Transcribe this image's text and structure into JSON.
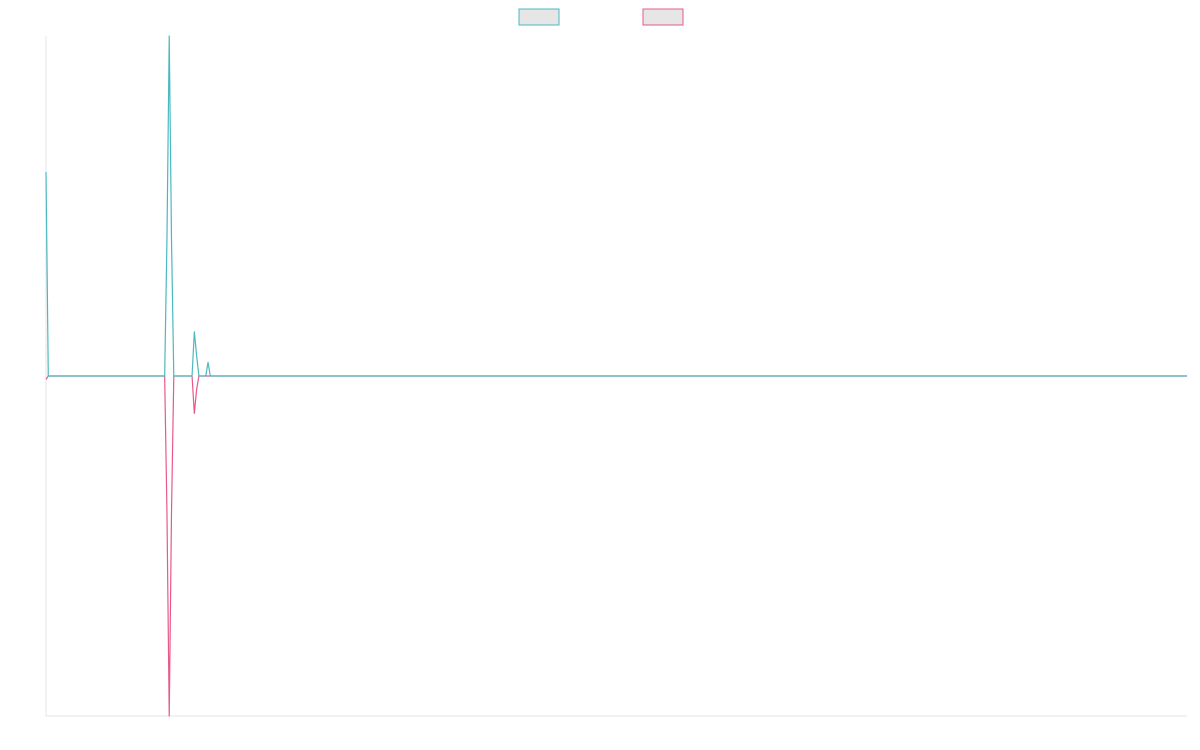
{
  "chart_data": {
    "type": "line",
    "title": "",
    "xlabel": "",
    "ylabel": "",
    "legend": "top-center",
    "grid": false,
    "xlim": [
      0,
      100
    ],
    "ylim": [
      -1,
      1
    ],
    "x": [
      0,
      0.2,
      10.2,
      10.4,
      10.6,
      10.8,
      11,
      11.2,
      12.8,
      13,
      13.2,
      13.4,
      13.6,
      14,
      14.2,
      14.4,
      14.6,
      15,
      15.2,
      100
    ],
    "series": [
      {
        "name": "",
        "color": "#4bb8c0",
        "values": [
          0.6,
          0,
          0,
          0,
          0.4,
          1.0,
          0.4,
          0,
          0,
          0.13,
          0.06,
          0,
          0,
          0,
          0.04,
          0,
          0,
          0,
          0,
          0
        ]
      },
      {
        "name": "",
        "color": "#e8588a",
        "values": [
          -0.01,
          0,
          0,
          0,
          -0.4,
          -1.0,
          -0.4,
          0,
          0,
          -0.11,
          -0.04,
          0,
          0,
          0,
          0,
          0,
          0,
          0,
          0,
          0
        ]
      }
    ]
  }
}
